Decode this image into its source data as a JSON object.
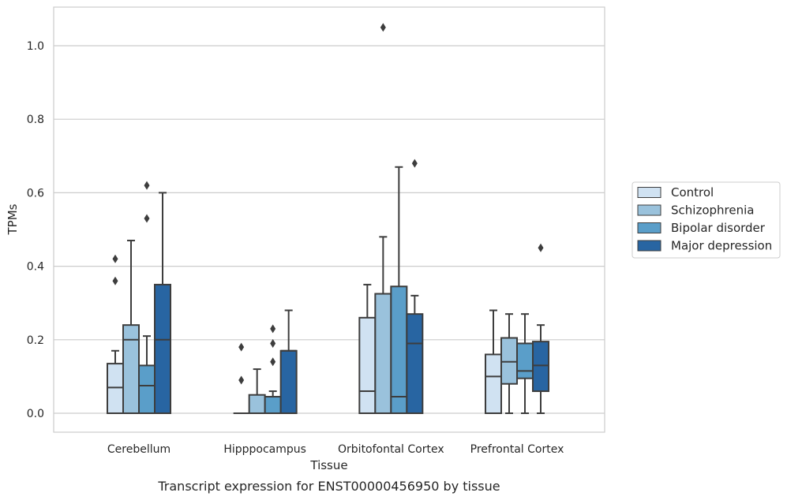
{
  "chart_data": {
    "type": "box",
    "caption": "Transcript expression for ENST00000456950 by tissue",
    "xlabel": "Tissue",
    "ylabel": "TPMs",
    "ylim": [
      -0.05,
      1.1
    ],
    "yticks": [
      0.0,
      0.2,
      0.4,
      0.6,
      0.8,
      1.0
    ],
    "ytick_labels": [
      "0.0",
      "0.2",
      "0.4",
      "0.6",
      "0.8",
      "1.0"
    ],
    "grid": "horizontal",
    "legend_position": "right",
    "categories": [
      "Cerebellum",
      "Hipppocampus",
      "Orbitofontal Cortex",
      "Prefrontal Cortex"
    ],
    "series": [
      {
        "name": "Control",
        "color": "#d0e2f2",
        "boxes": [
          {
            "whislo": 0.0,
            "q1": 0.0,
            "med": 0.07,
            "q3": 0.135,
            "whishi": 0.17,
            "fliers": [
              0.36,
              0.42
            ]
          },
          {
            "whislo": 0.0,
            "q1": 0.0,
            "med": 0.0,
            "q3": 0.0,
            "whishi": 0.0,
            "fliers": [
              0.09,
              0.18
            ]
          },
          {
            "whislo": 0.0,
            "q1": 0.0,
            "med": 0.06,
            "q3": 0.26,
            "whishi": 0.35,
            "fliers": []
          },
          {
            "whislo": 0.0,
            "q1": 0.0,
            "med": 0.1,
            "q3": 0.16,
            "whishi": 0.28,
            "fliers": []
          }
        ]
      },
      {
        "name": "Schizophrenia",
        "color": "#9ac2dc",
        "boxes": [
          {
            "whislo": 0.0,
            "q1": 0.0,
            "med": 0.2,
            "q3": 0.24,
            "whishi": 0.47,
            "fliers": []
          },
          {
            "whislo": 0.0,
            "q1": 0.0,
            "med": 0.0,
            "q3": 0.05,
            "whishi": 0.12,
            "fliers": []
          },
          {
            "whislo": 0.0,
            "q1": 0.0,
            "med": 0.325,
            "q3": 0.325,
            "whishi": 0.48,
            "fliers": [
              1.05
            ]
          },
          {
            "whislo": 0.0,
            "q1": 0.08,
            "med": 0.14,
            "q3": 0.205,
            "whishi": 0.27,
            "fliers": []
          }
        ]
      },
      {
        "name": "Bipolar disorder",
        "color": "#5a9ec9",
        "boxes": [
          {
            "whislo": 0.0,
            "q1": 0.0,
            "med": 0.075,
            "q3": 0.13,
            "whishi": 0.21,
            "fliers": [
              0.53,
              0.62
            ]
          },
          {
            "whislo": 0.0,
            "q1": 0.0,
            "med": 0.0,
            "q3": 0.045,
            "whishi": 0.06,
            "fliers": [
              0.14,
              0.19,
              0.23
            ]
          },
          {
            "whislo": 0.0,
            "q1": 0.0,
            "med": 0.045,
            "q3": 0.345,
            "whishi": 0.67,
            "fliers": []
          },
          {
            "whislo": 0.0,
            "q1": 0.095,
            "med": 0.115,
            "q3": 0.19,
            "whishi": 0.27,
            "fliers": []
          }
        ]
      },
      {
        "name": "Major depression",
        "color": "#2865a2",
        "boxes": [
          {
            "whislo": 0.0,
            "q1": 0.0,
            "med": 0.2,
            "q3": 0.35,
            "whishi": 0.6,
            "fliers": []
          },
          {
            "whislo": 0.0,
            "q1": 0.0,
            "med": 0.17,
            "q3": 0.17,
            "whishi": 0.28,
            "fliers": []
          },
          {
            "whislo": 0.0,
            "q1": 0.0,
            "med": 0.19,
            "q3": 0.27,
            "whishi": 0.32,
            "fliers": [
              0.68
            ]
          },
          {
            "whislo": 0.0,
            "q1": 0.06,
            "med": 0.13,
            "q3": 0.195,
            "whishi": 0.24,
            "fliers": [
              0.45
            ]
          }
        ]
      }
    ]
  }
}
